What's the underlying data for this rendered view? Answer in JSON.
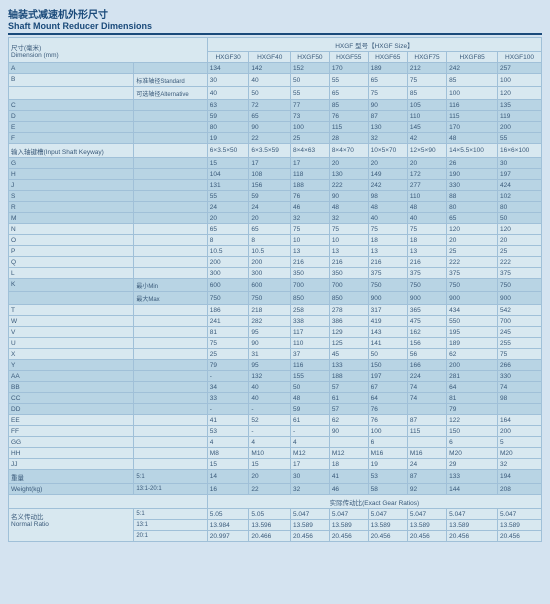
{
  "title_cn": "轴装式减速机外形尺寸",
  "title_en": "Shaft Mount Reducer Dimensions",
  "dim_cn": "尺寸(毫米)",
  "dim_en": "Dimension (mm)",
  "size_header": "HXGF 型号【HXGF Size】",
  "cols": [
    "HXGF30",
    "HXGF40",
    "HXGF50",
    "HXGF55",
    "HXGF65",
    "HXGF75",
    "HXGF85",
    "HXGF100"
  ],
  "rows": [
    {
      "cls": "r0",
      "lbl": "A",
      "sub": "",
      "v": [
        "134",
        "142",
        "152",
        "170",
        "189",
        "212",
        "242",
        "257"
      ]
    },
    {
      "cls": "r1",
      "lbl": "B",
      "sub": "标准轴径Standard",
      "v": [
        "30",
        "40",
        "50",
        "55",
        "65",
        "75",
        "85",
        "100"
      ]
    },
    {
      "cls": "r1",
      "lbl": "",
      "sub": "可选轴径Alternative",
      "v": [
        "40",
        "50",
        "55",
        "65",
        "75",
        "85",
        "100",
        "120"
      ]
    },
    {
      "cls": "r0",
      "lbl": "C",
      "sub": "",
      "v": [
        "63",
        "72",
        "77",
        "85",
        "90",
        "105",
        "116",
        "135"
      ]
    },
    {
      "cls": "r0",
      "lbl": "D",
      "sub": "",
      "v": [
        "59",
        "65",
        "73",
        "76",
        "87",
        "110",
        "115",
        "119"
      ]
    },
    {
      "cls": "r0",
      "lbl": "E",
      "sub": "",
      "v": [
        "80",
        "90",
        "100",
        "115",
        "130",
        "145",
        "170",
        "200"
      ]
    },
    {
      "cls": "r0",
      "lbl": "F",
      "sub": "",
      "v": [
        "19",
        "22",
        "25",
        "28",
        "32",
        "42",
        "48",
        "55"
      ]
    },
    {
      "cls": "r1",
      "lbl": "输入轴键槽(Input Shaft Keyway)",
      "sub": "",
      "v": [
        "6×3.5×50",
        "6×3.5×59",
        "8×4×63",
        "8×4×70",
        "10×5×70",
        "12×5×90",
        "14×5.5×100",
        "16×6×100"
      ]
    },
    {
      "cls": "r0",
      "lbl": "G",
      "sub": "",
      "v": [
        "15",
        "17",
        "17",
        "20",
        "20",
        "20",
        "26",
        "30"
      ]
    },
    {
      "cls": "r0",
      "lbl": "H",
      "sub": "",
      "v": [
        "104",
        "108",
        "118",
        "130",
        "149",
        "172",
        "190",
        "197"
      ]
    },
    {
      "cls": "r0",
      "lbl": "J",
      "sub": "",
      "v": [
        "131",
        "156",
        "188",
        "222",
        "242",
        "277",
        "330",
        "424"
      ]
    },
    {
      "cls": "r0",
      "lbl": "S",
      "sub": "",
      "v": [
        "55",
        "59",
        "76",
        "90",
        "98",
        "110",
        "88",
        "102"
      ]
    },
    {
      "cls": "r0",
      "lbl": "R",
      "sub": "",
      "v": [
        "24",
        "24",
        "46",
        "48",
        "48",
        "48",
        "80",
        "80"
      ]
    },
    {
      "cls": "r0",
      "lbl": "M",
      "sub": "",
      "v": [
        "20",
        "20",
        "32",
        "32",
        "40",
        "40",
        "65",
        "50"
      ]
    },
    {
      "cls": "r1",
      "lbl": "N",
      "sub": "",
      "v": [
        "65",
        "65",
        "75",
        "75",
        "75",
        "75",
        "120",
        "120"
      ]
    },
    {
      "cls": "r1",
      "lbl": "O",
      "sub": "",
      "v": [
        "8",
        "8",
        "10",
        "10",
        "18",
        "18",
        "20",
        "20"
      ]
    },
    {
      "cls": "r1",
      "lbl": "P",
      "sub": "",
      "v": [
        "10.5",
        "10.5",
        "13",
        "13",
        "13",
        "13",
        "25",
        "25"
      ]
    },
    {
      "cls": "r1",
      "lbl": "Q",
      "sub": "",
      "v": [
        "200",
        "200",
        "216",
        "216",
        "216",
        "216",
        "222",
        "222"
      ]
    },
    {
      "cls": "r1",
      "lbl": "L",
      "sub": "",
      "v": [
        "300",
        "300",
        "350",
        "350",
        "375",
        "375",
        "375",
        "375"
      ]
    },
    {
      "cls": "r0",
      "lbl": "K",
      "sub": "最小Min",
      "v": [
        "600",
        "600",
        "700",
        "700",
        "750",
        "750",
        "750",
        "750"
      ]
    },
    {
      "cls": "r0",
      "lbl": "",
      "sub": "最大Max",
      "v": [
        "750",
        "750",
        "850",
        "850",
        "900",
        "900",
        "900",
        "900"
      ]
    },
    {
      "cls": "r1",
      "lbl": "T",
      "sub": "",
      "v": [
        "186",
        "218",
        "258",
        "278",
        "317",
        "365",
        "434",
        "542"
      ]
    },
    {
      "cls": "r1",
      "lbl": "W",
      "sub": "",
      "v": [
        "241",
        "282",
        "338",
        "386",
        "419",
        "475",
        "550",
        "700"
      ]
    },
    {
      "cls": "r1",
      "lbl": "V",
      "sub": "",
      "v": [
        "81",
        "95",
        "117",
        "129",
        "143",
        "162",
        "195",
        "245"
      ]
    },
    {
      "cls": "r1",
      "lbl": "U",
      "sub": "",
      "v": [
        "75",
        "90",
        "110",
        "125",
        "141",
        "156",
        "189",
        "255"
      ]
    },
    {
      "cls": "r1",
      "lbl": "X",
      "sub": "",
      "v": [
        "25",
        "31",
        "37",
        "45",
        "50",
        "56",
        "62",
        "75"
      ]
    },
    {
      "cls": "r0",
      "lbl": "Y",
      "sub": "",
      "v": [
        "79",
        "95",
        "116",
        "133",
        "150",
        "166",
        "200",
        "266"
      ]
    },
    {
      "cls": "r0",
      "lbl": "AA",
      "sub": "",
      "v": [
        "-",
        "132",
        "155",
        "188",
        "197",
        "224",
        "281",
        "330"
      ]
    },
    {
      "cls": "r0",
      "lbl": "BB",
      "sub": "",
      "v": [
        "34",
        "40",
        "50",
        "57",
        "67",
        "74",
        "64",
        "74"
      ]
    },
    {
      "cls": "r0",
      "lbl": "CC",
      "sub": "",
      "v": [
        "33",
        "40",
        "48",
        "61",
        "64",
        "74",
        "81",
        "98"
      ]
    },
    {
      "cls": "r0",
      "lbl": "DD",
      "sub": "",
      "v": [
        "-",
        "-",
        "59",
        "57",
        "76",
        "",
        "79",
        ""
      ]
    },
    {
      "cls": "r1",
      "lbl": "EE",
      "sub": "",
      "v": [
        "41",
        "52",
        "61",
        "62",
        "76",
        "87",
        "122",
        "164"
      ]
    },
    {
      "cls": "r1",
      "lbl": "FF",
      "sub": "",
      "v": [
        "53",
        "-",
        "-",
        "90",
        "100",
        "115",
        "150",
        "200"
      ]
    },
    {
      "cls": "r1",
      "lbl": "GG",
      "sub": "",
      "v": [
        "4",
        "4",
        "4",
        "",
        "6",
        "",
        "6",
        "5"
      ]
    },
    {
      "cls": "r1",
      "lbl": "HH",
      "sub": "",
      "v": [
        "M8",
        "M10",
        "M12",
        "M12",
        "M16",
        "M16",
        "M20",
        "M20"
      ]
    },
    {
      "cls": "r1",
      "lbl": "JJ",
      "sub": "",
      "v": [
        "15",
        "15",
        "17",
        "18",
        "19",
        "24",
        "29",
        "32"
      ]
    },
    {
      "cls": "r0",
      "lbl": "重量",
      "sub": "5:1",
      "v": [
        "14",
        "20",
        "30",
        "41",
        "53",
        "87",
        "133",
        "194"
      ]
    },
    {
      "cls": "r0",
      "lbl": "Weight(kg)",
      "sub": "13:1-20:1",
      "v": [
        "16",
        "22",
        "32",
        "46",
        "58",
        "92",
        "144",
        "208"
      ]
    }
  ],
  "ratio_header": "实际传动比(Exact Gear Ratios)",
  "ratio_lbl_cn": "名义传动比",
  "ratio_lbl_en": "Normal Ratio",
  "ratio_rows": [
    {
      "lbl": "5:1",
      "v": [
        "5.05",
        "5.05",
        "5.047",
        "5.047",
        "5.047",
        "5.047",
        "5.047",
        "5.047"
      ]
    },
    {
      "lbl": "13:1",
      "v": [
        "13.984",
        "13.596",
        "13.589",
        "13.589",
        "13.589",
        "13.589",
        "13.589",
        "13.589"
      ]
    },
    {
      "lbl": "20:1",
      "v": [
        "20.997",
        "20.466",
        "20.456",
        "20.456",
        "20.456",
        "20.456",
        "20.456",
        "20.456"
      ]
    }
  ],
  "colors": {
    "page_bg": "#d4e3f0",
    "band0": "#b8d4e4",
    "band1": "#d8e8f0",
    "border": "#a0c0d8",
    "title": "#1a4a7a",
    "text": "#3a5a7a"
  }
}
